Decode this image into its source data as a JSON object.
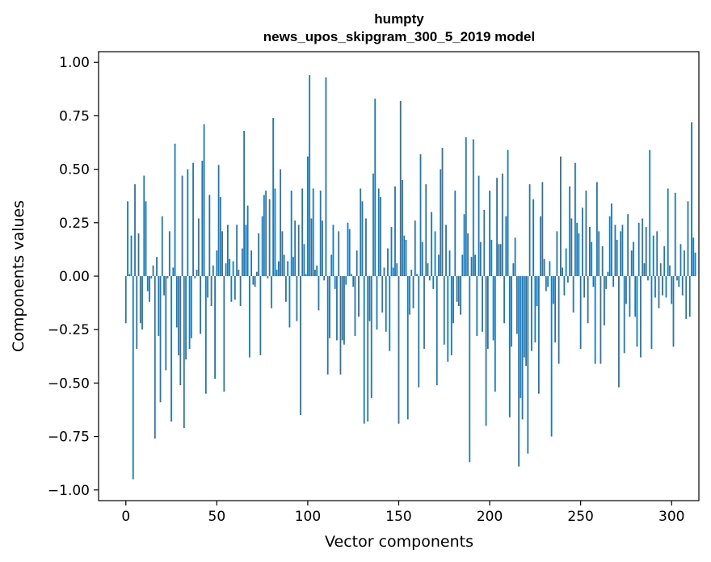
{
  "chart_data": {
    "type": "bar",
    "title_line1": "humpty",
    "title_line2": "news_upos_skipgram_300_5_2019 model",
    "xlabel": "Vector components",
    "ylabel": "Components values",
    "xlim": [
      -15,
      315
    ],
    "ylim": [
      -1.05,
      1.05
    ],
    "xticks": [
      0,
      50,
      100,
      150,
      200,
      250,
      300
    ],
    "xtick_labels": [
      "0",
      "50",
      "100",
      "150",
      "200",
      "250",
      "300"
    ],
    "yticks": [
      1.0,
      0.75,
      0.5,
      0.25,
      0.0,
      -0.25,
      -0.5,
      -0.75,
      -1.0
    ],
    "ytick_labels": [
      "1.00",
      "0.75",
      "0.50",
      "0.25",
      "0.00",
      "−0.25",
      "−0.50",
      "−0.75",
      "−1.00"
    ],
    "bar_color": "#1f77b4",
    "values": [
      -0.22,
      0.35,
      0.01,
      0.19,
      -0.95,
      0.43,
      -0.34,
      0.2,
      -0.22,
      -0.25,
      0.47,
      0.35,
      -0.07,
      -0.12,
      -0.01,
      0.05,
      -0.76,
      0.09,
      -0.28,
      -0.59,
      0.28,
      -0.09,
      -0.44,
      -0.01,
      0.21,
      -0.68,
      0.04,
      0.62,
      -0.24,
      -0.37,
      -0.51,
      0.47,
      -0.71,
      -0.39,
      0.5,
      -0.34,
      -0.29,
      0.53,
      -0.01,
      0.03,
      0.27,
      -0.27,
      0.54,
      0.71,
      -0.55,
      -0.1,
      0.38,
      -0.14,
      0.05,
      -0.48,
      0.12,
      0.52,
      0.37,
      0.21,
      -0.54,
      0.06,
      0.24,
      0.08,
      -0.12,
      0.07,
      -0.11,
      0.24,
      0.03,
      -0.14,
      0.13,
      0.68,
      0.24,
      0.33,
      -0.38,
      0.12,
      -0.04,
      -0.05,
      0.02,
      0.2,
      -0.37,
      0.28,
      0.38,
      0.4,
      -0.01,
      0.36,
      -0.15,
      0.74,
      0.41,
      0.03,
      0.07,
      0.5,
      0.21,
      0.1,
      -0.12,
      0.07,
      -0.24,
      0.4,
      0.09,
      0.26,
      -0.21,
      0.24,
      -0.65,
      0.41,
      0.15,
      0.01,
      0.56,
      0.94,
      0.27,
      0.41,
      0.03,
      0.05,
      -0.16,
      0.4,
      0.26,
      -0.02,
      0.93,
      -0.46,
      -0.29,
      0.1,
      0.24,
      -0.06,
      -0.3,
      0.21,
      -0.46,
      -0.3,
      -0.32,
      -0.04,
      0.25,
      0.22,
      0.01,
      -0.05,
      -0.28,
      0.12,
      -0.19,
      0.41,
      0.35,
      -0.69,
      0.27,
      -0.68,
      -0.21,
      -0.57,
      0.48,
      0.83,
      -0.25,
      0.41,
      0.37,
      -0.17,
      0.04,
      -0.26,
      0.13,
      -0.35,
      0.23,
      0.04,
      0.42,
      0.06,
      -0.69,
      0.82,
      0.45,
      0.19,
      0.17,
      -0.67,
      -0.18,
      0.03,
      -0.15,
      0.26,
      0.01,
      -0.52,
      0.57,
      0.16,
      -0.34,
      0.43,
      0.06,
      -0.02,
      0.3,
      -0.06,
      0.21,
      -0.51,
      0.1,
      0.5,
      0.6,
      -0.32,
      0.24,
      -0.4,
      0.12,
      -0.37,
      -0.22,
      0.4,
      -0.12,
      -0.14,
      -0.18,
      0.1,
      0.29,
      0.65,
      0.2,
      -0.87,
      0.09,
      0.64,
      0.1,
      -0.28,
      0.47,
      0.16,
      -0.26,
      0.31,
      -0.7,
      -0.34,
      0.4,
      0.17,
      -0.3,
      -0.54,
      0.46,
      0.15,
      0.15,
      0.48,
      -0.22,
      0.28,
      0.59,
      -0.66,
      -0.33,
      0.06,
      0.18,
      -0.27,
      -0.89,
      -0.57,
      -0.67,
      -0.38,
      -0.42,
      -0.83,
      0.43,
      -0.35,
      0.36,
      -0.31,
      -0.14,
      -0.55,
      0.28,
      0.44,
      0.08,
      -0.07,
      -0.05,
      0.07,
      -0.75,
      -0.13,
      -0.31,
      0.21,
      -0.41,
      0.56,
      0.04,
      -0.09,
      0.13,
      -0.03,
      0.42,
      0.27,
      -0.17,
      0.53,
      0.25,
      0.2,
      -0.34,
      0.32,
      -0.1,
      0.4,
      -0.22,
      0.23,
      0.16,
      -0.05,
      -0.41,
      0.44,
      0.21,
      -0.41,
      0.14,
      -0.23,
      -0.06,
      0.02,
      0.28,
      0.34,
      -0.05,
      0.24,
      0.17,
      -0.52,
      0.21,
      0.24,
      -0.36,
      -0.13,
      0.29,
      -0.19,
      0.12,
      0.16,
      -0.19,
      -0.33,
      0.25,
      -0.38,
      0.27,
      0.06,
      0.23,
      -0.02,
      0.59,
      -0.34,
      0.19,
      -0.1,
      0.21,
      -0.15,
      0.06,
      -0.09,
      0.14,
      -0.1,
      0.41,
      0.05,
      -0.13,
      -0.33,
      0.39,
      -0.02,
      -0.05,
      0.15,
      -0.09,
      0.12,
      -0.2,
      0.35,
      -0.19,
      0.72,
      0.18,
      0.11
    ]
  }
}
